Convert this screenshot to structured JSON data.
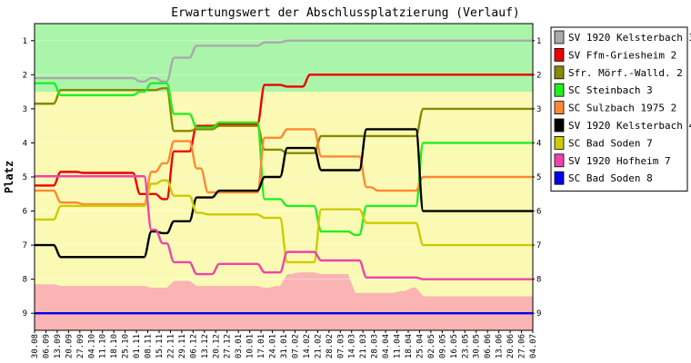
{
  "chart_data": {
    "type": "line",
    "title": "Erwartungswert der Abschlussplatzierung (Verlauf)",
    "ylabel": "Platz",
    "ylim": [
      9.5,
      0.5
    ],
    "y_ticks": [
      1,
      2,
      3,
      4,
      5,
      6,
      7,
      8,
      9
    ],
    "y_axis_inverted": true,
    "categories": [
      "30.08",
      "06.09",
      "13.09",
      "20.09",
      "27.09",
      "04.10",
      "11.10",
      "18.10",
      "25.10",
      "01.11",
      "08.11",
      "15.11",
      "22.11",
      "29.11",
      "06.12",
      "13.12",
      "20.12",
      "27.12",
      "03.01",
      "10.01",
      "17.01",
      "24.01",
      "31.01",
      "07.02",
      "14.02",
      "21.02",
      "28.02",
      "07.03",
      "14.03",
      "21.03",
      "28.03",
      "04.04",
      "11.04",
      "18.04",
      "25.04",
      "02.05",
      "09.05",
      "16.05",
      "23.05",
      "30.05",
      "06.06",
      "13.06",
      "20.06",
      "27.06",
      "04.07"
    ],
    "zones": {
      "promotion_max_rank": 2.5,
      "relegation_min_rank": [
        8.15,
        8.15,
        8.2,
        8.2,
        8.2,
        8.2,
        8.2,
        8.2,
        8.2,
        8.2,
        8.25,
        8.25,
        8.05,
        8.05,
        8.2,
        8.2,
        8.2,
        8.2,
        8.2,
        8.2,
        8.25,
        8.2,
        7.85,
        7.8,
        7.8,
        7.85,
        7.85,
        7.85,
        8.4,
        8.4,
        8.4,
        8.4,
        8.35,
        8.25,
        8.5,
        8.5,
        8.5,
        8.5,
        8.5,
        8.5,
        8.5,
        8.5,
        8.5,
        8.5,
        8.5
      ],
      "colors": {
        "promotion": "#aaf5aa",
        "middle": "#fafab4",
        "relegation": "#fab4b4"
      }
    },
    "legend_position": "right",
    "series": [
      {
        "name": "SV 1920 Kelsterbach 3",
        "color": "#aaaaaa",
        "values": [
          2.1,
          2.1,
          2.1,
          2.1,
          2.1,
          2.1,
          2.1,
          2.1,
          2.1,
          2.2,
          2.1,
          2.2,
          1.5,
          1.5,
          1.15,
          1.15,
          1.15,
          1.15,
          1.15,
          1.15,
          1.05,
          1.05,
          1.0,
          1.0,
          1.0,
          1.0,
          1.0,
          1.0,
          1.0,
          1.0,
          1.0,
          1.0,
          1.0,
          1.0,
          1.0,
          1.0,
          1.0,
          1.0,
          1.0,
          1.0,
          1.0,
          1.0,
          1.0,
          1.0,
          1.0
        ]
      },
      {
        "name": "SV Ffm-Griesheim 2",
        "color": "#ee0000",
        "values": [
          5.25,
          5.25,
          4.85,
          4.85,
          4.88,
          4.88,
          4.88,
          4.88,
          4.88,
          5.5,
          5.5,
          5.65,
          4.25,
          4.25,
          3.5,
          3.5,
          3.45,
          3.45,
          3.45,
          3.45,
          2.3,
          2.3,
          2.35,
          2.35,
          2.0,
          2.0,
          2.0,
          2.0,
          2.0,
          2.0,
          2.0,
          2.0,
          2.0,
          2.0,
          2.0,
          2.0,
          2.0,
          2.0,
          2.0,
          2.0,
          2.0,
          2.0,
          2.0,
          2.0,
          2.0
        ]
      },
      {
        "name": "Sfr. Mörf.-Walld. 2",
        "color": "#888800",
        "values": [
          2.85,
          2.85,
          2.45,
          2.45,
          2.45,
          2.45,
          2.45,
          2.45,
          2.45,
          2.45,
          2.45,
          2.4,
          3.65,
          3.65,
          3.6,
          3.6,
          3.5,
          3.5,
          3.5,
          3.5,
          4.2,
          4.2,
          4.3,
          4.3,
          4.3,
          3.8,
          3.8,
          3.8,
          3.8,
          3.8,
          3.8,
          3.8,
          3.8,
          3.8,
          3.0,
          3.0,
          3.0,
          3.0,
          3.0,
          3.0,
          3.0,
          3.0,
          3.0,
          3.0,
          3.0
        ]
      },
      {
        "name": "SC Steinbach 3",
        "color": "#22ee22",
        "values": [
          2.25,
          2.25,
          2.6,
          2.6,
          2.6,
          2.6,
          2.6,
          2.6,
          2.6,
          2.5,
          2.25,
          2.25,
          3.15,
          3.15,
          3.55,
          3.55,
          3.4,
          3.4,
          3.4,
          3.4,
          5.65,
          5.65,
          5.85,
          5.85,
          5.85,
          6.6,
          6.6,
          6.6,
          6.7,
          5.85,
          5.85,
          5.85,
          5.85,
          5.85,
          4.0,
          4.0,
          4.0,
          4.0,
          4.0,
          4.0,
          4.0,
          4.0,
          4.0,
          4.0,
          4.0
        ]
      },
      {
        "name": "SC Sulzbach 1975 2",
        "color": "#ff8833",
        "values": [
          5.4,
          5.4,
          5.75,
          5.75,
          5.8,
          5.8,
          5.8,
          5.8,
          5.8,
          5.8,
          4.85,
          4.6,
          3.95,
          3.95,
          4.75,
          5.45,
          5.45,
          5.45,
          5.45,
          5.45,
          3.85,
          3.85,
          3.6,
          3.6,
          3.6,
          4.4,
          4.4,
          4.4,
          4.4,
          5.3,
          5.4,
          5.4,
          5.4,
          5.4,
          5.0,
          5.0,
          5.0,
          5.0,
          5.0,
          5.0,
          5.0,
          5.0,
          5.0,
          5.0,
          5.0
        ]
      },
      {
        "name": "SV 1920 Kelsterbach 4",
        "color": "#000000",
        "values": [
          7.0,
          7.0,
          7.35,
          7.35,
          7.35,
          7.35,
          7.35,
          7.35,
          7.35,
          7.35,
          6.6,
          6.65,
          6.3,
          6.3,
          5.6,
          5.6,
          5.4,
          5.4,
          5.4,
          5.4,
          5.0,
          5.0,
          4.15,
          4.15,
          4.15,
          4.8,
          4.8,
          4.8,
          4.8,
          3.6,
          3.6,
          3.6,
          3.6,
          3.6,
          6.0,
          6.0,
          6.0,
          6.0,
          6.0,
          6.0,
          6.0,
          6.0,
          6.0,
          6.0,
          6.0
        ]
      },
      {
        "name": "SC Bad Soden 7",
        "color": "#cccc00",
        "values": [
          6.25,
          6.25,
          5.85,
          5.85,
          5.85,
          5.85,
          5.85,
          5.85,
          5.85,
          5.85,
          5.2,
          5.1,
          5.55,
          5.55,
          6.05,
          6.1,
          6.1,
          6.1,
          6.1,
          6.1,
          6.2,
          6.2,
          7.5,
          7.5,
          7.5,
          5.95,
          5.95,
          5.95,
          5.95,
          6.35,
          6.35,
          6.35,
          6.35,
          6.35,
          7.0,
          7.0,
          7.0,
          7.0,
          7.0,
          7.0,
          7.0,
          7.0,
          7.0,
          7.0,
          7.0
        ]
      },
      {
        "name": "SV 1920 Hofheim 7",
        "color": "#ee44aa",
        "values": [
          4.98,
          4.98,
          4.98,
          4.98,
          4.98,
          4.98,
          4.98,
          4.98,
          4.98,
          4.98,
          6.55,
          6.95,
          7.5,
          7.5,
          7.85,
          7.85,
          7.55,
          7.55,
          7.55,
          7.55,
          7.8,
          7.8,
          7.2,
          7.2,
          7.2,
          7.45,
          7.45,
          7.45,
          7.45,
          7.95,
          7.95,
          7.95,
          7.95,
          7.95,
          8.0,
          8.0,
          8.0,
          8.0,
          8.0,
          8.0,
          8.0,
          8.0,
          8.0,
          8.0,
          8.0
        ]
      },
      {
        "name": "SC Bad Soden 8",
        "color": "#0000ee",
        "values": [
          9,
          9,
          9,
          9,
          9,
          9,
          9,
          9,
          9,
          9,
          9,
          9,
          9,
          9,
          9,
          9,
          9,
          9,
          9,
          9,
          9,
          9,
          9,
          9,
          9,
          9,
          9,
          9,
          9,
          9,
          9,
          9,
          9,
          9,
          9,
          9,
          9,
          9,
          9,
          9,
          9,
          9,
          9,
          9,
          9
        ]
      }
    ]
  }
}
